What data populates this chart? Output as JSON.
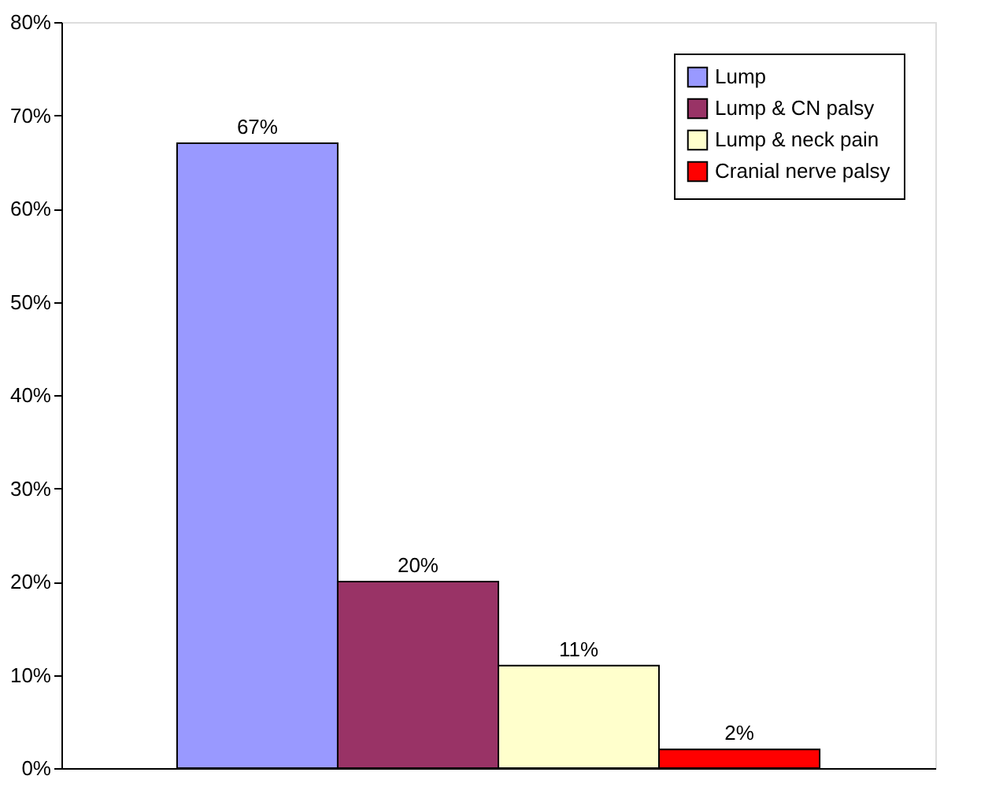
{
  "chart_data": {
    "type": "bar",
    "categories": [
      null
    ],
    "series": [
      {
        "name": "Lump",
        "color": "#9999ff",
        "values": [
          67
        ],
        "value_labels": [
          "67%"
        ]
      },
      {
        "name": "Lump & CN palsy",
        "color": "#993366",
        "values": [
          20
        ],
        "value_labels": [
          "20%"
        ]
      },
      {
        "name": "Lump & neck pain",
        "color": "#ffffcc",
        "values": [
          11
        ],
        "value_labels": [
          "11%"
        ]
      },
      {
        "name": "Cranial nerve palsy",
        "color": "#ff0000",
        "values": [
          2
        ],
        "value_labels": [
          "2%"
        ]
      }
    ],
    "ylim": [
      0,
      80
    ],
    "yticks": [
      {
        "value": 0,
        "label": "0%"
      },
      {
        "value": 10,
        "label": "10%"
      },
      {
        "value": 20,
        "label": "20%"
      },
      {
        "value": 30,
        "label": "30%"
      },
      {
        "value": 40,
        "label": "40%"
      },
      {
        "value": 50,
        "label": "50%"
      },
      {
        "value": 60,
        "label": "60%"
      },
      {
        "value": 70,
        "label": "70%"
      },
      {
        "value": 80,
        "label": "80%"
      }
    ],
    "grid": false,
    "legend": "top right",
    "tick_labels": "y"
  }
}
